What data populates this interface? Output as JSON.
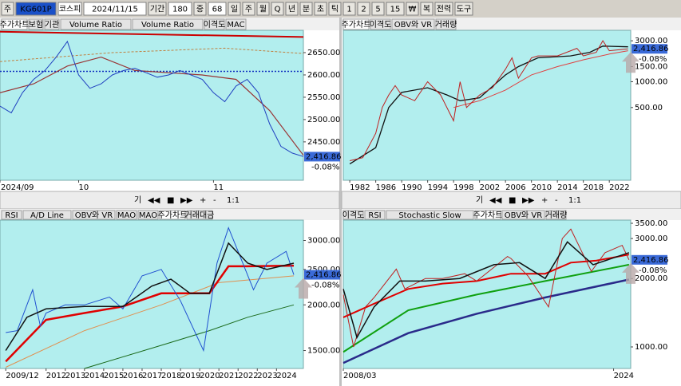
{
  "toolbar": {
    "items": [
      "주",
      "KG601P",
      "코스피",
      "2024/11/15",
      "기간",
      "180",
      "중",
      "68",
      "일",
      "주",
      "월",
      "Q",
      "년",
      "분",
      "초",
      "틱",
      "1",
      "2",
      "5",
      "15",
      "₩",
      "복",
      "전력",
      "도구"
    ]
  },
  "scroll_controls": [
    "기",
    "◀◀",
    "■",
    "▶▶",
    "+",
    "-",
    "1:1"
  ],
  "panels": [
    {
      "tabs": [
        "주가차트",
        "보험",
        "기관",
        "Volume Ratio",
        "Volume Ratio",
        "이격도",
        "MAC"
      ],
      "log": false,
      "ylim": [
        2364,
        2700
      ],
      "xlim": [
        0,
        54
      ],
      "yticks": [
        {
          "value": 2650,
          "label": "2650.00"
        },
        {
          "value": 2600,
          "label": "2600.00"
        },
        {
          "value": 2550,
          "label": "2550.00"
        },
        {
          "value": 2500,
          "label": "2500.00"
        },
        {
          "value": 2450,
          "label": "2450.00"
        }
      ],
      "xticks": [
        {
          "value": 0,
          "label": "2024/09"
        },
        {
          "value": 14,
          "label": "10"
        },
        {
          "value": 38,
          "label": "11"
        }
      ],
      "close": 2416.86,
      "close_label": "2,416.86",
      "change_label": "-0.08%",
      "series": [
        {
          "color": "#cc0000",
          "width": 2,
          "x": [
            0,
            54
          ],
          "values": [
            2697,
            2685
          ]
        },
        {
          "color": "#c08040",
          "width": 1,
          "dash": "3,2",
          "x": [
            0,
            20,
            40,
            54
          ],
          "values": [
            2630,
            2650,
            2660,
            2648
          ]
        },
        {
          "color": "#1030c0",
          "width": 1.5,
          "dash": "2,2",
          "x": [
            0,
            54
          ],
          "values": [
            2608,
            2608
          ]
        },
        {
          "color": "#993333",
          "width": 1.2,
          "x": [
            0,
            6,
            12,
            18,
            24,
            30,
            36,
            42,
            48,
            54
          ],
          "values": [
            2560,
            2580,
            2620,
            2640,
            2610,
            2605,
            2600,
            2590,
            2520,
            2420
          ]
        },
        {
          "color": "#2040c0",
          "width": 1,
          "x": [
            0,
            2,
            4,
            6,
            8,
            10,
            12,
            14,
            16,
            18,
            20,
            22,
            24,
            26,
            28,
            30,
            32,
            34,
            36,
            38,
            40,
            42,
            44,
            46,
            48,
            50,
            52,
            54
          ],
          "values": [
            2530,
            2515,
            2560,
            2590,
            2610,
            2640,
            2675,
            2600,
            2570,
            2580,
            2600,
            2610,
            2615,
            2605,
            2595,
            2600,
            2610,
            2600,
            2590,
            2560,
            2540,
            2575,
            2590,
            2560,
            2490,
            2440,
            2425,
            2417
          ]
        }
      ]
    },
    {
      "tabs": [
        "주가차트",
        "이격도",
        "OBV와 VR",
        "거래량"
      ],
      "log": true,
      "ylim": [
        71,
        3975
      ],
      "xlim": [
        1981,
        2025.3
      ],
      "yticks": [
        {
          "value": 3000,
          "label": "3000.00"
        },
        {
          "value": 1500,
          "label": "1500.00"
        },
        {
          "value": 1000,
          "label": "1000.00"
        },
        {
          "value": 500,
          "label": "500.00"
        }
      ],
      "xticks": [
        1982,
        1986,
        1990,
        1994,
        1998,
        2002,
        2006,
        2010,
        2014,
        2018,
        2022
      ],
      "close": 2416.86,
      "close_label": "2,416.86",
      "change_label": "-0.08%",
      "series": [
        {
          "color": "#e04040",
          "width": 1,
          "x": [
            1998,
            2002,
            2006,
            2010,
            2014,
            2018,
            2022,
            2024.9
          ],
          "values": [
            500,
            600,
            800,
            1200,
            1500,
            1800,
            2100,
            2300
          ]
        },
        {
          "color": "#111111",
          "width": 1.3,
          "x": [
            1982,
            1986,
            1988,
            1990,
            1994,
            1997,
            1999,
            2002,
            2006,
            2008,
            2011,
            2016,
            2019,
            2021,
            2024.9
          ],
          "values": [
            110,
            170,
            500,
            750,
            850,
            700,
            600,
            650,
            1200,
            1500,
            1900,
            2000,
            2200,
            2600,
            2550
          ]
        },
        {
          "color": "#c02020",
          "width": 1,
          "x": [
            1982,
            1984,
            1986,
            1987,
            1988,
            1989,
            1990,
            1992,
            1994,
            1996,
            1998,
            1999,
            2000,
            2002,
            2004,
            2006,
            2007,
            2008,
            2010,
            2011,
            2014,
            2017,
            2018,
            2020,
            2021,
            2022,
            2024.9
          ],
          "values": [
            120,
            130,
            250,
            500,
            700,
            900,
            700,
            600,
            1000,
            700,
            350,
            1000,
            500,
            700,
            850,
            1400,
            1900,
            1100,
            1900,
            2000,
            2000,
            2450,
            2000,
            2200,
            3000,
            2300,
            2417
          ]
        }
      ]
    },
    {
      "tabs": [
        "RSI",
        "A/D Line",
        "OBV와 VR",
        "MAO",
        "MAO",
        "주가차트",
        "거래대금"
      ],
      "log": true,
      "ylim": [
        1340,
        3410
      ],
      "xlim": [
        2009.6,
        2025.4
      ],
      "yticks": [
        {
          "value": 3000,
          "label": "3000.00"
        },
        {
          "value": 2500,
          "label": "2500.00"
        },
        {
          "value": 2000,
          "label": "2000.00"
        },
        {
          "value": 1500,
          "label": "1500.00"
        }
      ],
      "xticks": [
        {
          "value": 2009.9,
          "label": "2009/12"
        },
        2012,
        2013,
        2014,
        2015,
        2016,
        2017,
        2018,
        2019,
        2020,
        2021,
        2022,
        2023,
        2024
      ],
      "close": 2416.86,
      "close_label": "2,416.86",
      "change_label": "-0.08%",
      "series": [
        {
          "color": "#1a6a1a",
          "width": 1,
          "x": [
            2014,
            2018,
            2020.5,
            2022.5,
            2024.9
          ],
          "values": [
            1340,
            1550,
            1700,
            1850,
            2000
          ]
        },
        {
          "color": "#e09050",
          "width": 1,
          "x": [
            2009.9,
            2014,
            2018,
            2021,
            2024.9
          ],
          "values": [
            1350,
            1700,
            2000,
            2300,
            2400
          ]
        },
        {
          "color": "#e00000",
          "width": 2.5,
          "x": [
            2009.9,
            2012,
            2014,
            2016,
            2018,
            2019.5,
            2020.5,
            2021.5,
            2022.5,
            2024.9
          ],
          "values": [
            1400,
            1820,
            1900,
            1980,
            2150,
            2150,
            2150,
            2550,
            2550,
            2560
          ]
        },
        {
          "color": "#2050d0",
          "width": 1,
          "x": [
            2009.9,
            2010.5,
            2011.3,
            2011.7,
            2012,
            2013,
            2014,
            2015.3,
            2016,
            2017,
            2018,
            2019,
            2020.2,
            2020.9,
            2021.5,
            2022,
            2022.8,
            2023.5,
            2024.5,
            2024.9
          ],
          "values": [
            1680,
            1700,
            2200,
            1750,
            1900,
            2000,
            2000,
            2100,
            1950,
            2400,
            2500,
            2050,
            1500,
            2600,
            3250,
            2800,
            2200,
            2600,
            2800,
            2417
          ]
        },
        {
          "color": "#111111",
          "width": 1.5,
          "x": [
            2009.9,
            2011,
            2012,
            2014,
            2016,
            2017.5,
            2018.5,
            2019.5,
            2020.5,
            2021.5,
            2022.5,
            2023.5,
            2024.9
          ],
          "values": [
            1500,
            1850,
            1950,
            1980,
            1980,
            2250,
            2350,
            2150,
            2150,
            2950,
            2600,
            2500,
            2600
          ]
        }
      ]
    },
    {
      "tabs": [
        "이격도",
        "RSI",
        "Stochastic Slow",
        "주가차트",
        "OBV와 VR",
        "거래량"
      ],
      "log": true,
      "ylim": [
        804,
        3615
      ],
      "xlim": [
        2008.2,
        2025.0
      ],
      "yticks": [
        {
          "value": 3500,
          "label": "3500.00"
        },
        {
          "value": 3000,
          "label": "3000.00"
        },
        {
          "value": 2000,
          "label": "2000.00"
        },
        {
          "value": 1000,
          "label": "1000.00"
        }
      ],
      "xticks": [
        {
          "value": 2008.2,
          "label": "2008/03"
        },
        2024
      ],
      "close": 2416.86,
      "close_label": "2,416.86",
      "change_label": "-0.08%",
      "series": [
        {
          "color": "#2a2a8a",
          "width": 2.5,
          "x": [
            2008.2,
            2012,
            2016,
            2020,
            2024.9
          ],
          "values": [
            850,
            1150,
            1400,
            1650,
            1980
          ]
        },
        {
          "color": "#10a010",
          "width": 2,
          "x": [
            2008.2,
            2012,
            2016,
            2020,
            2024.9
          ],
          "values": [
            950,
            1450,
            1700,
            1950,
            2300
          ]
        },
        {
          "color": "#e00000",
          "width": 2,
          "x": [
            2008.2,
            2010,
            2012,
            2014,
            2016,
            2018,
            2020,
            2021.5,
            2023,
            2024.9
          ],
          "values": [
            1350,
            1550,
            1800,
            1900,
            1950,
            2100,
            2100,
            2350,
            2400,
            2550
          ]
        },
        {
          "color": "#c02020",
          "width": 1,
          "x": [
            2008.2,
            2008.8,
            2009.5,
            2010,
            2011.3,
            2011.8,
            2013,
            2014,
            2015.3,
            2016,
            2017.8,
            2018,
            2019,
            2020.2,
            2021,
            2021.5,
            2022.7,
            2023.5,
            2024.5,
            2024.9
          ],
          "values": [
            1700,
            1000,
            1500,
            1650,
            2200,
            1800,
            2000,
            2000,
            2100,
            1950,
            2500,
            2450,
            2050,
            1500,
            3000,
            3300,
            2150,
            2600,
            2800,
            2417
          ]
        },
        {
          "color": "#111111",
          "width": 1.5,
          "x": [
            2008.2,
            2009,
            2010,
            2011.5,
            2013,
            2015,
            2017,
            2018.5,
            2020,
            2021.3,
            2022.8,
            2024.9
          ],
          "values": [
            1800,
            1100,
            1500,
            1950,
            1950,
            2000,
            2300,
            2350,
            2000,
            2900,
            2300,
            2600
          ]
        }
      ]
    }
  ]
}
